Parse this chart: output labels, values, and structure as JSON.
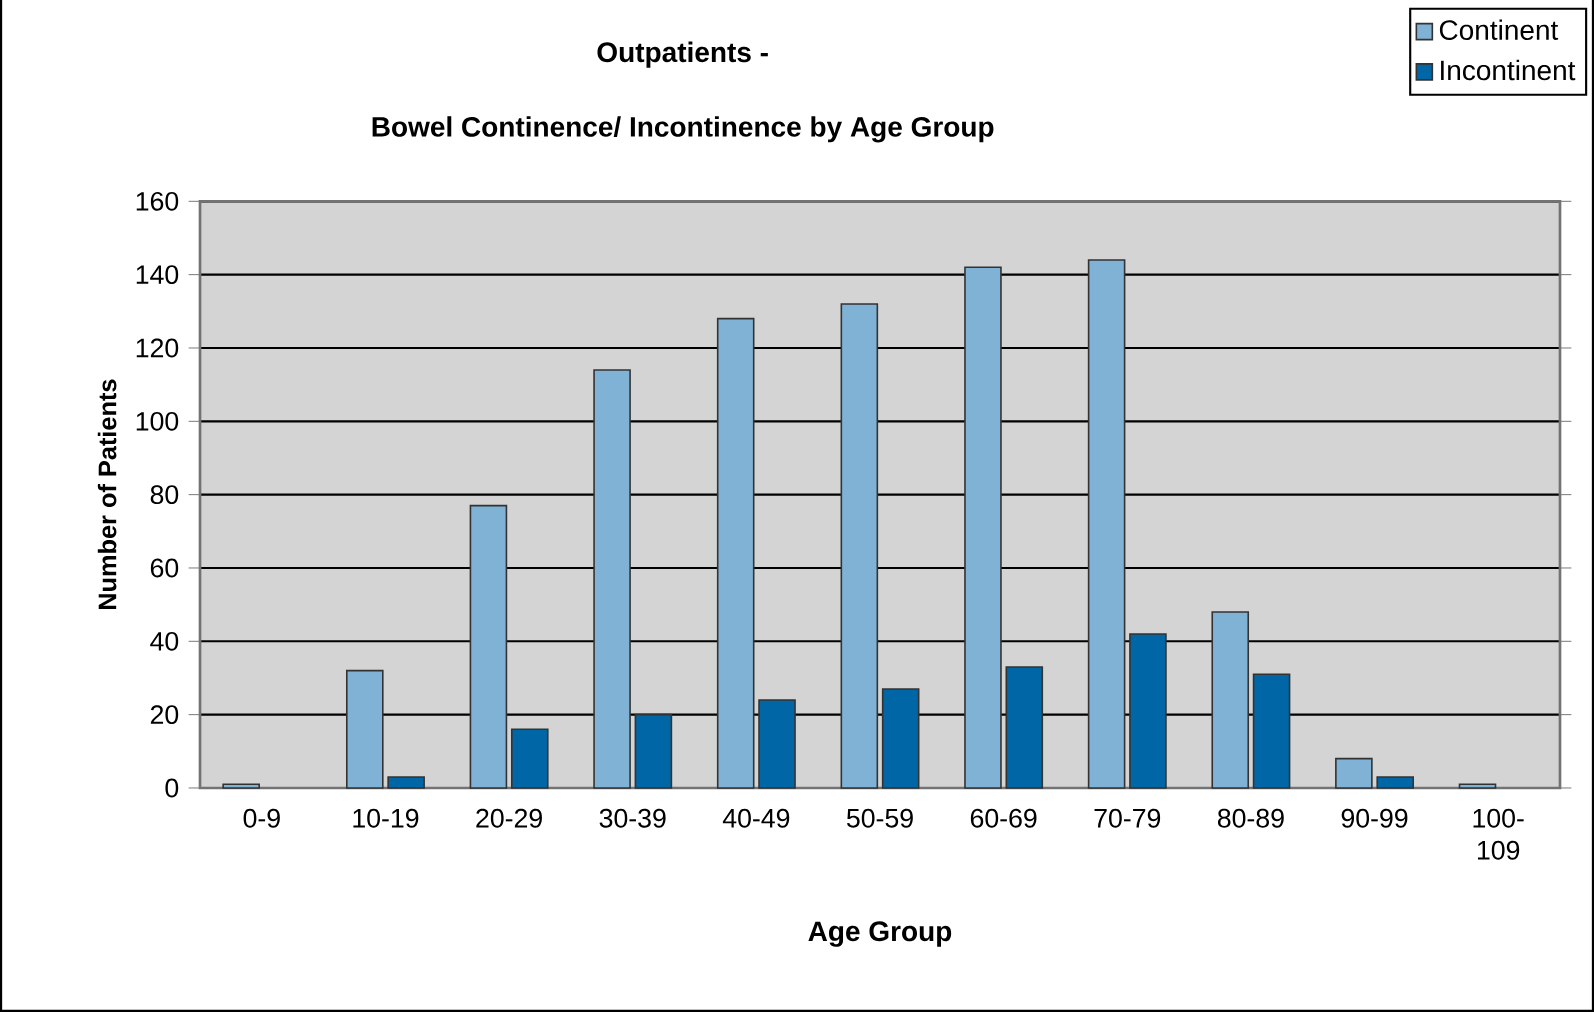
{
  "chart_data": {
    "type": "bar",
    "title": "Outpatients -",
    "subtitle": "Bowel Continence/ Incontinence by Age Group",
    "xlabel": "Age Group",
    "ylabel": "Number of Patients",
    "categories": [
      "0-9",
      "10-19",
      "20-29",
      "30-39",
      "40-49",
      "50-59",
      "60-69",
      "70-79",
      "80-89",
      "90-99",
      "100-109"
    ],
    "series": [
      {
        "name": "Continent",
        "color": "#7fb2d4",
        "values": [
          1,
          32,
          77,
          114,
          128,
          132,
          142,
          144,
          48,
          8,
          1
        ]
      },
      {
        "name": "Incontinent",
        "color": "#0066a6",
        "values": [
          null,
          3,
          16,
          20,
          24,
          27,
          33,
          42,
          31,
          3,
          null
        ]
      }
    ],
    "ylim": [
      0,
      160
    ],
    "yticks": [
      0,
      20,
      40,
      60,
      80,
      100,
      120,
      140,
      160
    ],
    "grid": "y",
    "legend": "top right"
  }
}
